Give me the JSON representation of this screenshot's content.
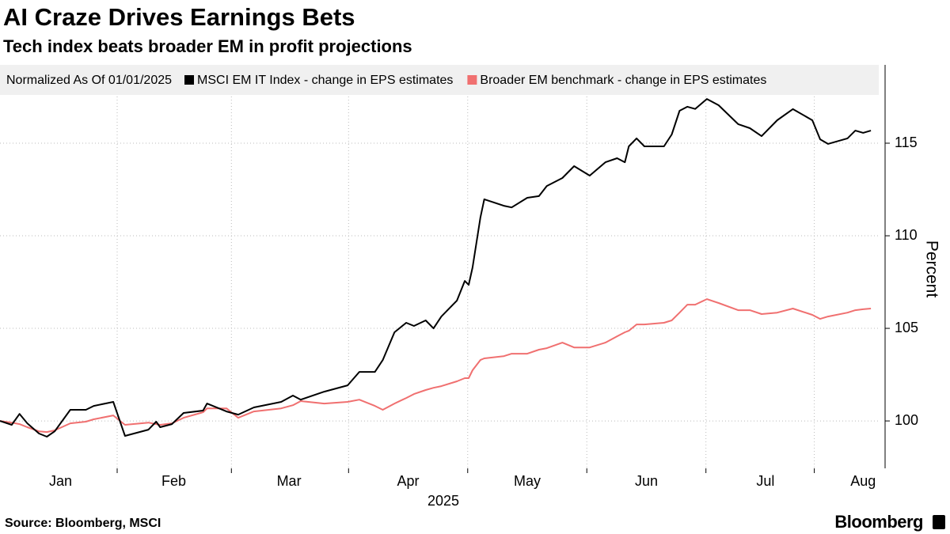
{
  "chart_data": {
    "type": "line",
    "title": "AI Craze Drives Earnings Bets",
    "subtitle": "Tech index beats broader EM in profit projections",
    "legend_title": "Normalized As Of 01/01/2025",
    "ylabel": "Percent",
    "xlabel": "2025",
    "source": "Source: Bloomberg, MSCI",
    "brand": "Bloomberg",
    "x": [
      0,
      3,
      5,
      7,
      10,
      12,
      14,
      18,
      22,
      24,
      29,
      32,
      38,
      40,
      41,
      44,
      47,
      52,
      53,
      58,
      61,
      65,
      72,
      75,
      77,
      83,
      89,
      92,
      96,
      98,
      101,
      104,
      106,
      109,
      111,
      113,
      117,
      119,
      120,
      121,
      123,
      124,
      129,
      131,
      135,
      138,
      140,
      144,
      147,
      151,
      155,
      158,
      160,
      161,
      163,
      165,
      170,
      172,
      174,
      176,
      178,
      181,
      184,
      189,
      192,
      195,
      199,
      203,
      208,
      210,
      212,
      217,
      219,
      221,
      223
    ],
    "xlim": [
      0,
      225
    ],
    "xticks": [
      {
        "value": 15.5,
        "label": "Jan"
      },
      {
        "value": 44.5,
        "label": "Feb"
      },
      {
        "value": 74,
        "label": "Mar"
      },
      {
        "value": 104.5,
        "label": "Apr"
      },
      {
        "value": 135,
        "label": "May"
      },
      {
        "value": 165.5,
        "label": "Jun"
      },
      {
        "value": 196,
        "label": "Jul"
      },
      {
        "value": 221,
        "label": "Aug"
      }
    ],
    "ylim": [
      97.44,
      119.23
    ],
    "yticks": [
      100,
      105,
      110,
      115
    ],
    "grid": true,
    "series": [
      {
        "name": "MSCI EM IT Index - change in EPS estimates",
        "color": "#000000",
        "values": [
          100,
          99.79,
          100.38,
          99.87,
          99.32,
          99.15,
          99.44,
          100.6,
          100.6,
          100.81,
          101.03,
          99.19,
          99.53,
          99.96,
          99.66,
          99.83,
          100.43,
          100.56,
          100.94,
          100.51,
          100.34,
          100.73,
          101.03,
          101.37,
          101.15,
          101.58,
          101.92,
          102.65,
          102.65,
          103.29,
          104.79,
          105.3,
          105.13,
          105.43,
          105.0,
          105.64,
          106.5,
          107.56,
          107.35,
          108.29,
          110.98,
          111.97,
          111.62,
          111.53,
          112.05,
          112.14,
          112.69,
          113.12,
          113.76,
          113.25,
          113.97,
          114.19,
          113.97,
          114.83,
          115.26,
          114.83,
          114.83,
          115.47,
          116.75,
          116.97,
          116.85,
          117.39,
          117.05,
          116.03,
          115.81,
          115.38,
          116.24,
          116.84,
          116.24,
          115.21,
          114.96,
          115.26,
          115.68,
          115.56,
          115.68
        ]
      },
      {
        "name": "Broader EM benchmark - change in EPS estimates",
        "color": "#f07070",
        "values": [
          100,
          99.91,
          99.83,
          99.66,
          99.44,
          99.4,
          99.49,
          99.87,
          99.96,
          100.09,
          100.3,
          99.79,
          99.91,
          99.83,
          99.79,
          99.87,
          100.17,
          100.47,
          100.68,
          100.68,
          100.17,
          100.51,
          100.68,
          100.85,
          101.07,
          100.94,
          101.03,
          101.15,
          100.81,
          100.6,
          100.94,
          101.24,
          101.45,
          101.67,
          101.79,
          101.88,
          102.14,
          102.31,
          102.31,
          102.74,
          103.29,
          103.38,
          103.5,
          103.63,
          103.63,
          103.85,
          103.93,
          104.23,
          103.97,
          103.97,
          104.23,
          104.57,
          104.79,
          104.87,
          105.21,
          105.21,
          105.3,
          105.43,
          105.85,
          106.28,
          106.28,
          106.58,
          106.37,
          105.98,
          105.98,
          105.77,
          105.85,
          106.07,
          105.73,
          105.51,
          105.64,
          105.85,
          105.98,
          106.03,
          106.07
        ]
      }
    ]
  }
}
